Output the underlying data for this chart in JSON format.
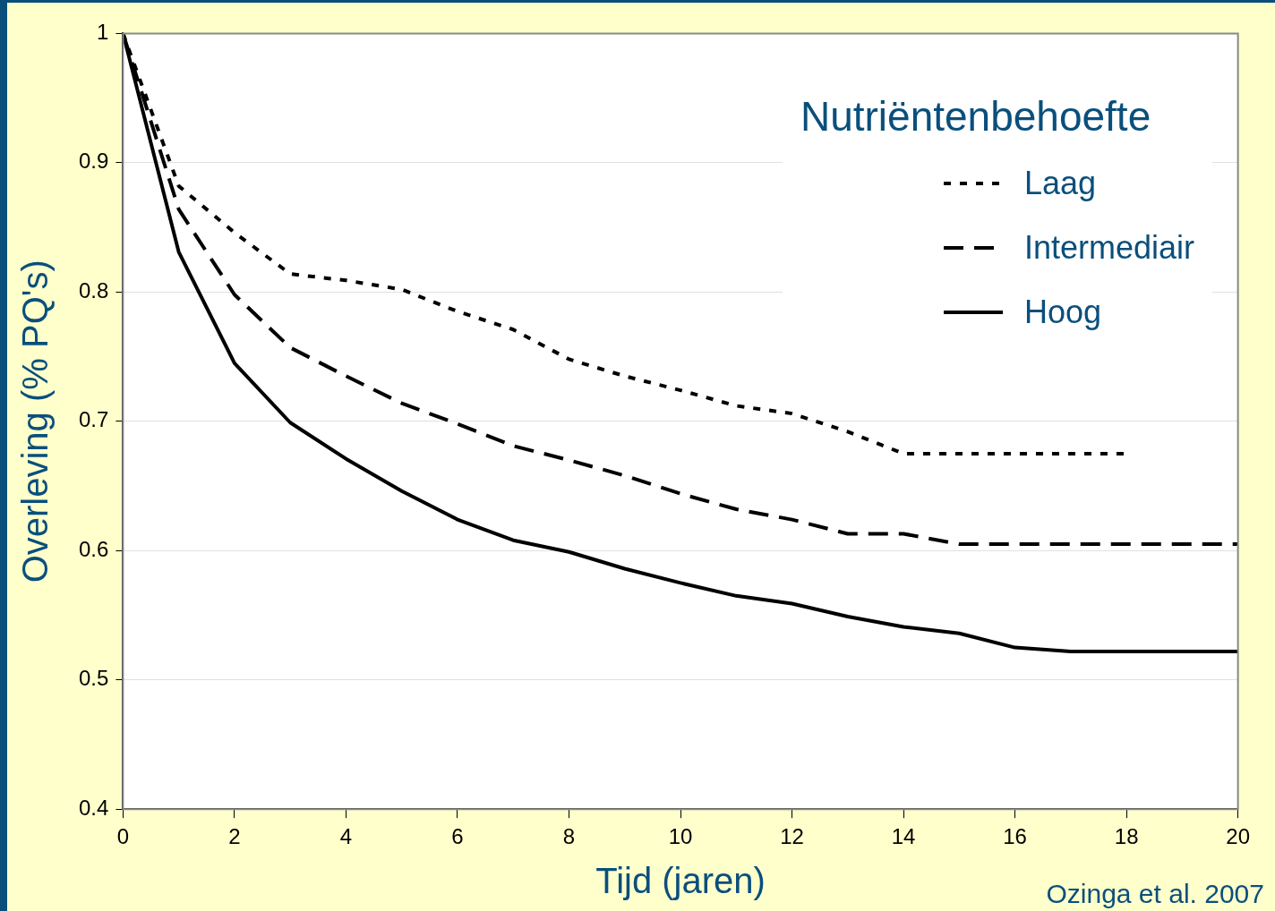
{
  "chart_data": {
    "type": "line",
    "xlabel": "Tijd (jaren)",
    "ylabel": "Overleving (% PQ's)",
    "legend_title": "Nutriëntenbehoefte",
    "x": [
      0,
      1,
      2,
      3,
      4,
      5,
      6,
      7,
      8,
      9,
      10,
      11,
      12,
      13,
      14,
      15,
      16,
      17,
      18,
      19,
      20
    ],
    "series": [
      {
        "name": "Laag",
        "color": "#000000",
        "line_style": "dotted",
        "values": [
          1.0,
          0.882,
          0.846,
          0.814,
          0.809,
          0.802,
          0.785,
          0.771,
          0.748,
          0.735,
          0.724,
          0.712,
          0.706,
          0.692,
          0.675,
          0.675,
          0.675,
          0.675,
          0.675,
          null,
          null
        ]
      },
      {
        "name": "Intermediair",
        "color": "#000000",
        "line_style": "dashed",
        "values": [
          1.0,
          0.864,
          0.798,
          0.757,
          0.735,
          0.714,
          0.698,
          0.681,
          0.67,
          0.658,
          0.644,
          0.632,
          0.624,
          0.613,
          0.613,
          0.605,
          0.605,
          0.605,
          0.605,
          0.605,
          0.605
        ]
      },
      {
        "name": "Hoog",
        "color": "#000000",
        "line_style": "solid",
        "values": [
          1.0,
          0.831,
          0.745,
          0.699,
          0.671,
          0.646,
          0.624,
          0.608,
          0.599,
          0.586,
          0.575,
          0.565,
          0.559,
          0.549,
          0.541,
          0.536,
          0.525,
          0.522,
          0.522,
          0.522,
          0.522
        ]
      }
    ],
    "xlim": [
      0,
      20
    ],
    "xticks": [
      0,
      2,
      4,
      6,
      8,
      10,
      12,
      14,
      16,
      18,
      20
    ],
    "ylim": [
      0.4,
      1
    ],
    "yticks": [
      0.4,
      0.5,
      0.6,
      0.7,
      0.8,
      0.9,
      1
    ],
    "grid": "y",
    "legend": "top right",
    "marker": "none",
    "annotations": [
      "Ozinga et al. 2007"
    ]
  }
}
